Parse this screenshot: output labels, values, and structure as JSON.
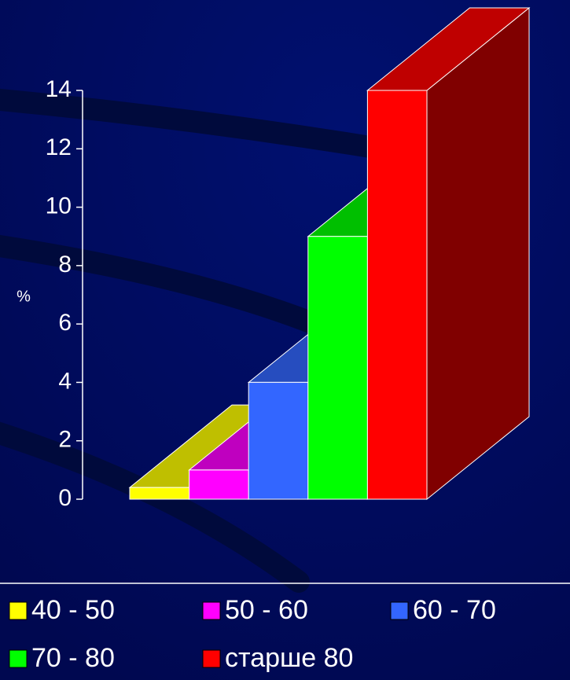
{
  "chart_data": {
    "type": "bar3d",
    "ylabel": "%",
    "categories": [
      "40 - 50",
      "50 - 60",
      "60 - 70",
      "70 - 80",
      "старше 80"
    ],
    "values": [
      0.4,
      1,
      4,
      9,
      14
    ],
    "colors": [
      "#ffff00",
      "#ff00ff",
      "#3366ff",
      "#00ff00",
      "#ff0000"
    ],
    "ylim": [
      0,
      14
    ],
    "yticks": [
      0,
      2,
      4,
      6,
      8,
      10,
      12,
      14
    ]
  }
}
